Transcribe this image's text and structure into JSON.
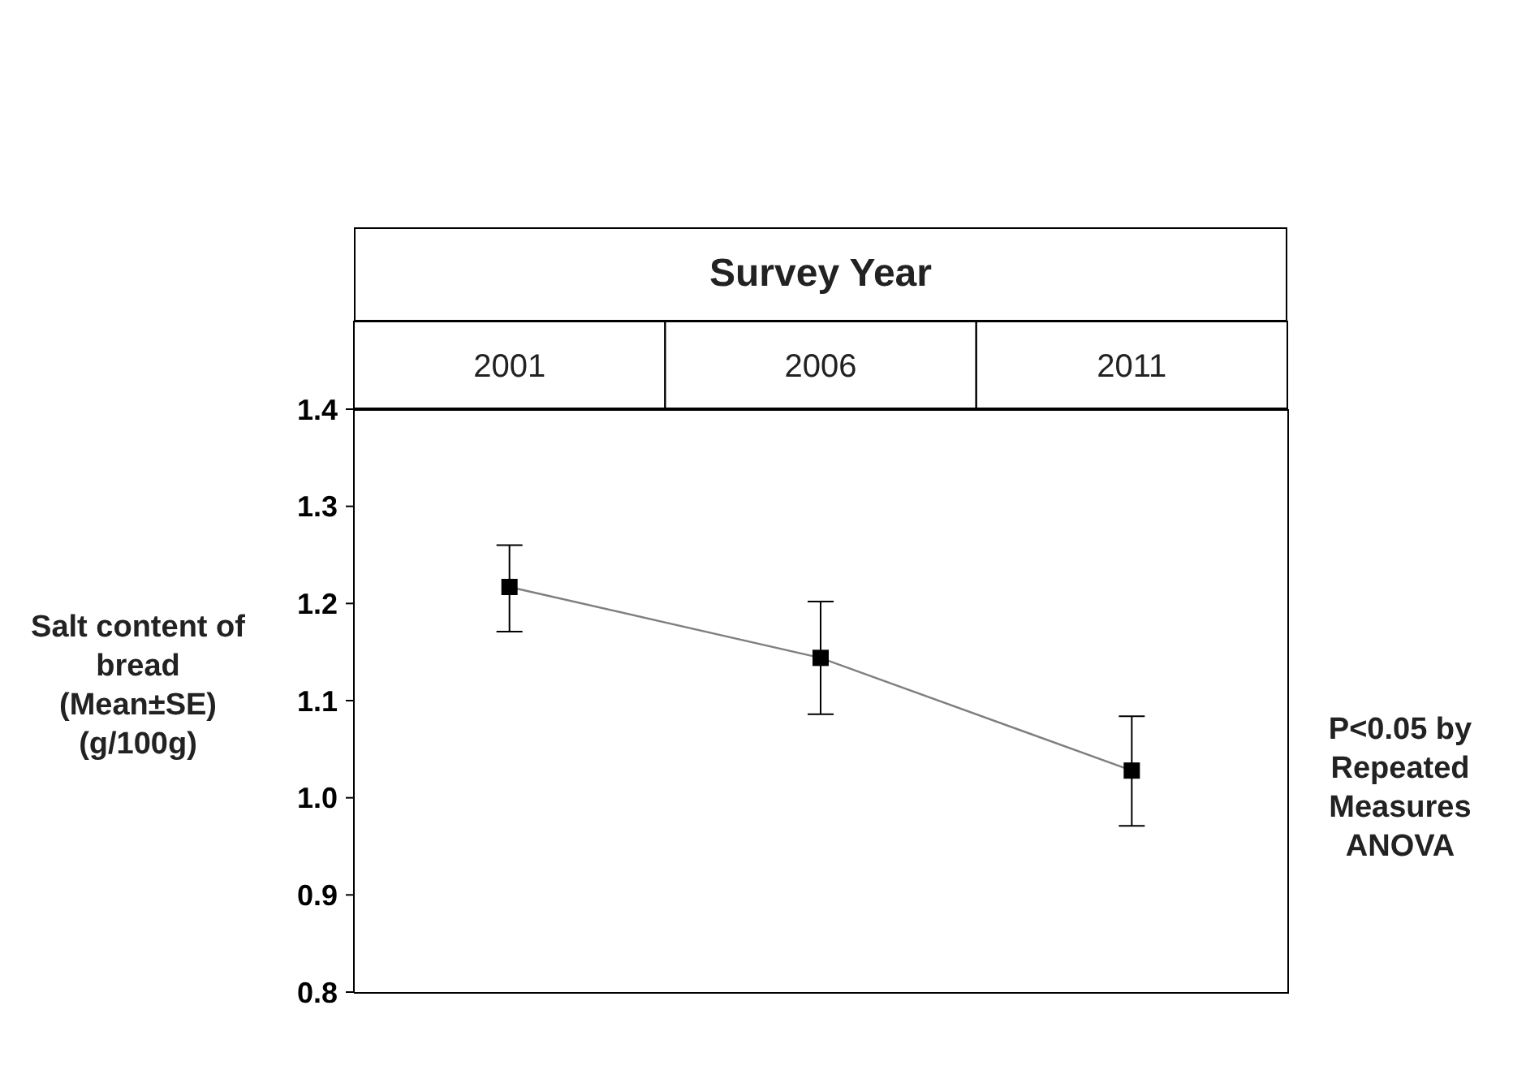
{
  "chart_data": {
    "type": "line",
    "xlabel": "Survey Year",
    "ylabel": "Salt content of bread (Mean±SE) (g/100g)",
    "categories": [
      "2001",
      "2006",
      "2011"
    ],
    "series": [
      {
        "color": "#000000",
        "values": [
          1.217,
          1.144,
          1.028
        ],
        "errors": [
          [
            1.171,
            1.26
          ],
          [
            1.086,
            1.202
          ],
          [
            0.971,
            1.084
          ]
        ]
      }
    ],
    "ylim": [
      0.8,
      1.4
    ],
    "yticks": [
      0.8,
      0.9,
      {
        "value": 1,
        "label": "1.0"
      },
      1.1,
      1.2,
      1.3,
      1.4
    ],
    "marker": "square",
    "line_style": "solid",
    "annotations": [
      "P<0.05 by Repeated Measures ANOVA"
    ]
  }
}
